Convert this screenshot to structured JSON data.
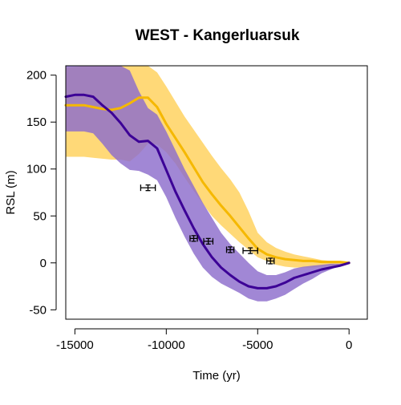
{
  "chart_data": {
    "type": "line",
    "title": "WEST -  Kangerluarsuk",
    "xlabel": "Time (yr)",
    "ylabel": "RSL (m)",
    "xlim": [
      -15500,
      1000
    ],
    "ylim": [
      -60,
      210
    ],
    "xticks": [
      -15000,
      -10000,
      -5000,
      0
    ],
    "yticks": [
      -50,
      0,
      50,
      100,
      150,
      200
    ],
    "colors": {
      "series_a_line": "#f5b800",
      "series_a_band": "#ffd978",
      "series_b_line": "#3c0096",
      "series_b_band": "#8c6ccc",
      "observations": "#000000"
    },
    "series": [
      {
        "x": [
          -15500,
          -15000,
          -14500,
          -14000,
          -13500,
          -13000,
          -12500,
          -12000,
          -11500,
          -11000,
          -10500,
          -10000,
          -9500,
          -9000,
          -8500,
          -8000,
          -7500,
          -7000,
          -6500,
          -6000,
          -5500,
          -5000,
          -4500,
          -4000,
          -3500,
          -3000,
          -2500,
          -2000,
          -1500,
          -1000,
          -500,
          0
        ],
        "values": [
          168,
          168,
          168,
          166,
          164,
          163,
          165,
          170,
          176,
          176,
          166,
          148,
          133,
          118,
          102,
          86,
          73,
          61,
          50,
          38,
          26,
          15,
          9,
          6,
          4,
          3,
          2,
          2,
          1,
          1,
          1,
          0
        ],
        "upper": [
          208,
          209,
          210,
          211,
          212,
          213,
          212,
          211,
          211,
          211,
          203,
          188,
          172,
          156,
          142,
          128,
          114,
          101,
          89,
          75,
          55,
          32,
          22,
          16,
          12,
          9,
          7,
          5,
          3,
          2,
          1,
          0
        ],
        "lower": [
          113,
          113,
          113,
          112,
          111,
          110,
          110,
          108,
          116,
          127,
          126,
          118,
          106,
          91,
          77,
          63,
          50,
          40,
          31,
          22,
          14,
          6,
          2,
          -2,
          -4,
          -5,
          -5,
          -5,
          -4,
          -3,
          -2,
          0
        ]
      },
      {
        "x": [
          -15500,
          -15000,
          -14500,
          -14000,
          -13500,
          -13000,
          -12500,
          -12000,
          -11500,
          -11000,
          -10500,
          -10000,
          -9500,
          -9000,
          -8500,
          -8000,
          -7500,
          -7000,
          -6500,
          -6000,
          -5500,
          -5000,
          -4500,
          -4000,
          -3500,
          -3000,
          -2500,
          -2000,
          -1500,
          -1000,
          -500,
          0
        ],
        "values": [
          177,
          179,
          179,
          177,
          168,
          160,
          149,
          136,
          129,
          130,
          122,
          99,
          76,
          56,
          37,
          20,
          6,
          -5,
          -13,
          -20,
          -25,
          -27,
          -27,
          -25,
          -21,
          -16,
          -13,
          -10,
          -7,
          -5,
          -3,
          0
        ],
        "upper": [
          210,
          211,
          212,
          213,
          212,
          211,
          210,
          205,
          183,
          165,
          158,
          140,
          120,
          100,
          82,
          64,
          48,
          32,
          20,
          10,
          0,
          -9,
          -13,
          -13,
          -10,
          -6,
          -4,
          -3,
          -2,
          -1,
          -1,
          0
        ],
        "lower": [
          140,
          140,
          140,
          138,
          127,
          115,
          106,
          99,
          98,
          94,
          88,
          70,
          48,
          28,
          10,
          -5,
          -15,
          -22,
          -27,
          -32,
          -38,
          -41,
          -41,
          -38,
          -34,
          -28,
          -22,
          -17,
          -11,
          -7,
          -3,
          0
        ]
      }
    ],
    "observations": [
      {
        "x": -11000,
        "y": 80,
        "xerr": 400,
        "yerr": 3
      },
      {
        "x": -8500,
        "y": 26,
        "xerr": 200,
        "yerr": 3
      },
      {
        "x": -7700,
        "y": 23,
        "xerr": 250,
        "yerr": 3
      },
      {
        "x": -6500,
        "y": 14,
        "xerr": 200,
        "yerr": 3
      },
      {
        "x": -5400,
        "y": 13,
        "xerr": 400,
        "yerr": 3
      },
      {
        "x": -4300,
        "y": 2,
        "xerr": 200,
        "yerr": 3
      }
    ],
    "grid": false,
    "legend": "none"
  }
}
